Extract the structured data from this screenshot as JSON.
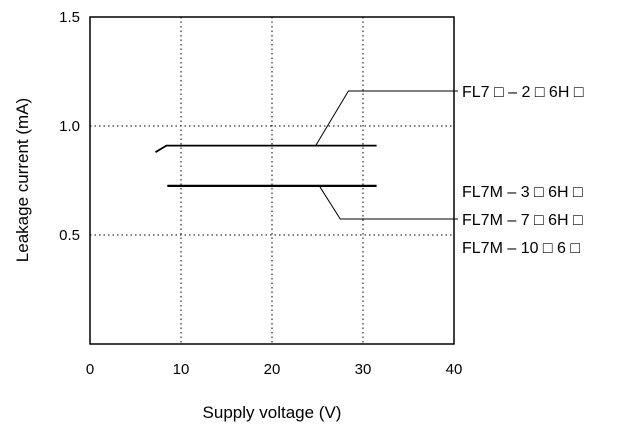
{
  "chart_data": {
    "type": "line",
    "xlabel": "Supply voltage (V)",
    "ylabel": "Leakage current (mA)",
    "xlim": [
      0,
      40
    ],
    "ylim": [
      0,
      1.5
    ],
    "x_ticks": [
      0,
      10,
      20,
      30,
      40
    ],
    "x_tick_labels": [
      "0",
      "10",
      "20",
      "30",
      "40"
    ],
    "y_ticks": [
      0.5,
      1.0,
      1.5
    ],
    "y_tick_labels": [
      "0.5",
      "1.0",
      "1.5"
    ],
    "grid": "dotted",
    "series": [
      {
        "x": [
          7.2,
          8.4,
          31.5
        ],
        "y": [
          0.88,
          0.91,
          0.91
        ],
        "labels": [
          "FL7 □ – 2 □ 6H □"
        ]
      },
      {
        "x": [
          8.5,
          31.5
        ],
        "y": [
          0.725,
          0.725
        ],
        "labels": [
          "FL7M – 3 □ 6H □",
          "FL7M – 7 □ 6H □",
          "FL7M – 10 □ 6 □"
        ]
      }
    ]
  }
}
